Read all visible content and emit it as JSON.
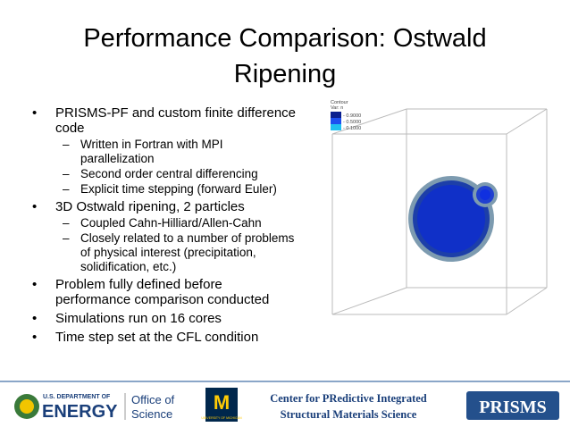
{
  "title": [
    "Performance Comparison: Ostwald",
    "Ripening"
  ],
  "bullets": [
    {
      "lines": [
        "PRISMS-PF and custom finite difference",
        "code"
      ],
      "sub": [
        {
          "lines": [
            "Written in Fortran with MPI",
            "parallelization"
          ]
        },
        {
          "lines": [
            "Second order central differencing"
          ]
        },
        {
          "lines": [
            "Explicit time stepping (forward Euler)"
          ]
        }
      ]
    },
    {
      "lines": [
        "3D Ostwald ripening, 2 particles"
      ],
      "sub": [
        {
          "lines": [
            "Coupled Cahn-Hilliard/Allen-Cahn"
          ]
        },
        {
          "lines": [
            "Closely related to a number of problems",
            "of physical interest (precipitation,",
            "solidification, etc.)"
          ]
        }
      ]
    },
    {
      "lines": [
        "Problem fully defined before",
        "performance comparison conducted"
      ],
      "sub": []
    },
    {
      "lines": [
        "Simulations run on 16 cores"
      ],
      "sub": []
    },
    {
      "lines": [
        "Time step set at the CFL condition"
      ],
      "sub": []
    }
  ],
  "legend": {
    "title": "Contour",
    "var": "Var: n",
    "levels": [
      "- 0.9000",
      "- 0.5000",
      "- 0.1000"
    ]
  },
  "footer": {
    "doe_top": "U.S. DEPARTMENT OF",
    "doe_main": "ENERGY",
    "office1": "Office of",
    "office2": "Science",
    "umich": "UNIVERSITY OF MICHIGAN",
    "center1": "Center for  PRedictive Integrated",
    "center2": "Structural Materials Science",
    "prisms": "PRISMS"
  }
}
